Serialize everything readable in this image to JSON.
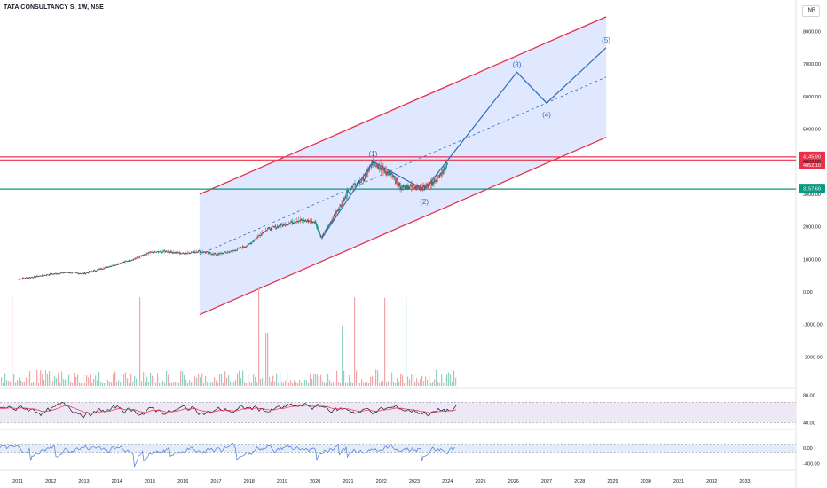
{
  "header": {
    "symbol": "TATA CONSULTANCY S, 1W, NSE",
    "currency": "INR"
  },
  "colors": {
    "channel_fill": "#dbe4ff",
    "channel_line": "#e8304a",
    "wave_line": "#2f6db7",
    "level_red": "#e8304a",
    "level_green": "#089981",
    "volume_up": "#8fd3c4",
    "volume_down": "#f3a6a6",
    "rsi_line": "#131722",
    "rsi_ma": "#e8304a",
    "osc_line": "#4a7bd8",
    "band_fill": "#ede7f6"
  },
  "chart_data": [
    {
      "type": "line",
      "name": "price",
      "x_labels": [
        "2011",
        "2012",
        "2013",
        "2014",
        "2015",
        "2016",
        "2017",
        "2018",
        "2019",
        "2020",
        "2021",
        "2022",
        "2023",
        "2024",
        "2025",
        "2026",
        "2027",
        "2028",
        "2029",
        "2030",
        "2031",
        "2032",
        "2033"
      ],
      "y_ticks": [
        "8000.00",
        "7000.00",
        "6000.00",
        "5000.00",
        "4000.00",
        "3000.00",
        "2000.00",
        "1000.00",
        "0.00",
        "-1000.00",
        "-2000.00"
      ],
      "ylim": [
        -2000,
        8000
      ],
      "price_path": [
        [
          2011.0,
          390
        ],
        [
          2011.5,
          460
        ],
        [
          2012.0,
          540
        ],
        [
          2012.5,
          600
        ],
        [
          2013.0,
          560
        ],
        [
          2013.5,
          700
        ],
        [
          2014.0,
          850
        ],
        [
          2014.5,
          1000
        ],
        [
          2015.0,
          1200
        ],
        [
          2015.5,
          1250
        ],
        [
          2016.0,
          1180
        ],
        [
          2016.5,
          1250
        ],
        [
          2017.0,
          1150
        ],
        [
          2017.5,
          1250
        ],
        [
          2018.0,
          1450
        ],
        [
          2018.5,
          1900
        ],
        [
          2019.0,
          2050
        ],
        [
          2019.5,
          2200
        ],
        [
          2020.0,
          2150
        ],
        [
          2020.2,
          1650
        ],
        [
          2020.5,
          2200
        ],
        [
          2020.8,
          2700
        ],
        [
          2021.0,
          3100
        ],
        [
          2021.5,
          3500
        ],
        [
          2021.75,
          4000
        ],
        [
          2022.0,
          3800
        ],
        [
          2022.3,
          3600
        ],
        [
          2022.6,
          3200
        ],
        [
          2022.9,
          3250
        ],
        [
          2023.2,
          3200
        ],
        [
          2023.5,
          3300
        ],
        [
          2023.8,
          3600
        ],
        [
          2024.0,
          3900
        ]
      ],
      "channel": {
        "start": [
          2016.5,
          1150
        ],
        "end": [
          2028.8,
          6600
        ],
        "width": 3700
      },
      "levels": [
        {
          "label": "4145.90",
          "value": 4145.9,
          "color": "red"
        },
        {
          "label": "4052.10",
          "value": 4052.1,
          "color": "red"
        },
        {
          "label": "3157.60",
          "value": 3157.6,
          "color": "green"
        }
      ],
      "waves": [
        {
          "label": "(1)",
          "x": 2021.75,
          "y": 4000
        },
        {
          "label": "(2)",
          "x": 2023.3,
          "y": 3130
        },
        {
          "label": "(3)",
          "x": 2026.1,
          "y": 6750
        },
        {
          "label": "(4)",
          "x": 2027.0,
          "y": 5800
        },
        {
          "label": "(5)",
          "x": 2028.8,
          "y": 7500
        }
      ],
      "wave_path": [
        [
          2020.2,
          1650
        ],
        [
          2021.75,
          4000
        ],
        [
          2023.3,
          3130
        ],
        [
          2026.1,
          6750
        ],
        [
          2027.0,
          5800
        ],
        [
          2028.8,
          7500
        ]
      ]
    },
    {
      "type": "line",
      "name": "rsi",
      "y_ticks": [
        "80.00",
        "40.00"
      ],
      "ylim": [
        30,
        90
      ],
      "band": [
        40,
        70
      ]
    },
    {
      "type": "line",
      "name": "oscillator",
      "y_ticks": [
        "0.00",
        "-400.00"
      ],
      "ylim": [
        -500,
        500
      ],
      "band": [
        -100,
        100
      ]
    }
  ]
}
